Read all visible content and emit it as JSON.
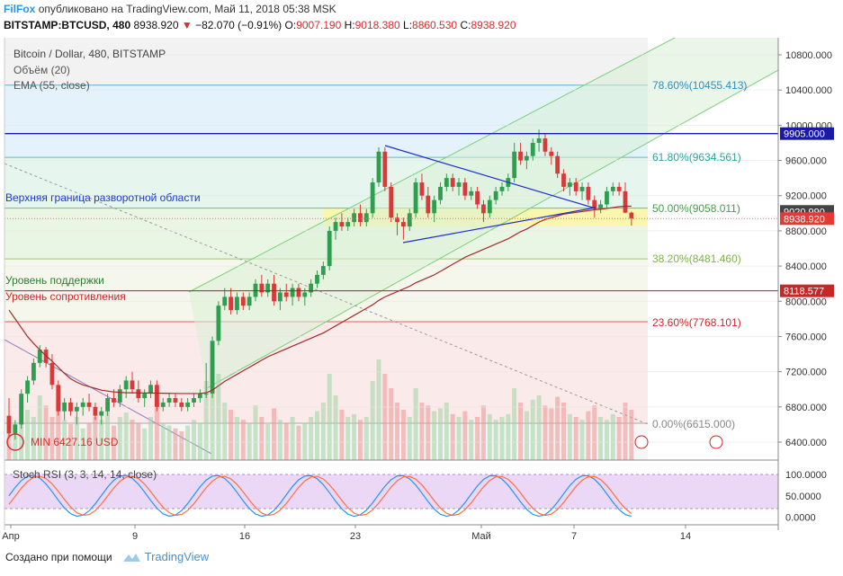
{
  "header": {
    "brand": "FilFox",
    "published": "опубликовано на TradingView.com, Май 11, 2018 05:38 MSK",
    "symbol": "BITSTAMP:BTCUSD, 480",
    "last": "8938.920",
    "change": "−82.070 (−0.91%)",
    "o_label": "O:",
    "o": "9007.190",
    "h_label": "H:",
    "h": "9018.380",
    "l_label": "L:",
    "l": "8860.530",
    "c_label": "C:",
    "c": "8938.920"
  },
  "legend": {
    "title": "Bitcoin / Dollar, 480, BITSTAMP",
    "volume": "Объём (20)",
    "ema": "EMA (55, close)"
  },
  "annotations": {
    "upper_reversal": "Верхняя граница разворотной области",
    "support": "Уровень поддержки",
    "resistance": "Уровень сопротивления",
    "min": "MIN 6427.16 USD"
  },
  "price_labels": {
    "blue_line": "9905.000",
    "current": "9020.990",
    "last": "8938.920",
    "resistance": "8118.577"
  },
  "fib_levels": [
    {
      "text": "78.60%(10455.413)",
      "value": 10455.413,
      "color": "#2a8fc0",
      "band": "#e3f2fb"
    },
    {
      "text": "61.80%(9634.561)",
      "value": 9634.561,
      "color": "#26a69a",
      "band": "#e6f5ee"
    },
    {
      "text": "50.00%(9058.011)",
      "value": 9058.011,
      "color": "#43a047",
      "band": "#eaf6e4"
    },
    {
      "text": "38.20%(8481.460)",
      "value": 8481.46,
      "color": "#7cb342",
      "band": "#f6f7ec"
    },
    {
      "text": "23.60%(7768.101)",
      "value": 7768.101,
      "color": "#c62828",
      "band": "#fbeaea"
    },
    {
      "text": "0.00%(6615.000)",
      "value": 6615.0,
      "color": "#888888",
      "band": "#f6f6f6"
    }
  ],
  "stoch": {
    "title": "Stoch RSI (3, 3, 14, 14, close)",
    "ticks": [
      "100.0000",
      "50.0000",
      "0.0000"
    ]
  },
  "chart_data": {
    "type": "candlestick",
    "price_ticks": [
      "10800.000",
      "10400.000",
      "10000.000",
      "9600.000",
      "9200.000",
      "8800.000",
      "8400.000",
      "8000.000",
      "7600.000",
      "7200.000",
      "6800.000",
      "6400.000"
    ],
    "price_range": [
      6250,
      11000
    ],
    "x_labels": [
      "Апр",
      "9",
      "16",
      "23",
      "Май",
      "7",
      "14"
    ],
    "highlight_zone": [
      8850,
      9050
    ],
    "candles": [
      [
        6700,
        6900,
        6450,
        6500
      ],
      [
        6500,
        6650,
        6430,
        6600
      ],
      [
        6600,
        7000,
        6550,
        6950
      ],
      [
        6950,
        7150,
        6850,
        7100
      ],
      [
        7100,
        7350,
        7050,
        7300
      ],
      [
        7300,
        7500,
        7250,
        7450
      ],
      [
        7450,
        7480,
        7250,
        7300
      ],
      [
        7300,
        7400,
        7000,
        7050
      ],
      [
        7050,
        7100,
        6700,
        6750
      ],
      [
        6750,
        6900,
        6650,
        6850
      ],
      [
        6850,
        6900,
        6700,
        6750
      ],
      [
        6750,
        6850,
        6600,
        6800
      ],
      [
        6800,
        6900,
        6700,
        6850
      ],
      [
        6850,
        6950,
        6750,
        6800
      ],
      [
        6800,
        6850,
        6650,
        6700
      ],
      [
        6700,
        6800,
        6600,
        6750
      ],
      [
        6750,
        6950,
        6700,
        6900
      ],
      [
        6900,
        7000,
        6800,
        6850
      ],
      [
        6850,
        7050,
        6800,
        7000
      ],
      [
        7000,
        7150,
        6900,
        7100
      ],
      [
        7100,
        7200,
        6950,
        7000
      ],
      [
        7000,
        7100,
        6850,
        6900
      ],
      [
        6900,
        7000,
        6800,
        6950
      ],
      [
        6950,
        7100,
        6900,
        7050
      ],
      [
        7050,
        7100,
        6750,
        6800
      ],
      [
        6800,
        6900,
        6750,
        6850
      ],
      [
        6850,
        6950,
        6800,
        6900
      ],
      [
        6900,
        6950,
        6800,
        6850
      ],
      [
        6850,
        6900,
        6750,
        6800
      ],
      [
        6800,
        6900,
        6750,
        6850
      ],
      [
        6850,
        6950,
        6800,
        6900
      ],
      [
        6900,
        7000,
        6850,
        6950
      ],
      [
        6950,
        7300,
        6900,
        6950
      ],
      [
        6950,
        7600,
        6900,
        7550
      ],
      [
        7550,
        8000,
        7500,
        7950
      ],
      [
        7950,
        8150,
        7900,
        8050
      ],
      [
        8050,
        8150,
        7850,
        7900
      ],
      [
        7900,
        8100,
        7850,
        8050
      ],
      [
        8050,
        8100,
        7900,
        7950
      ],
      [
        7950,
        8100,
        7900,
        8050
      ],
      [
        8050,
        8250,
        8000,
        8200
      ],
      [
        8200,
        8300,
        8050,
        8100
      ],
      [
        8100,
        8250,
        8050,
        8200
      ],
      [
        8200,
        8300,
        7950,
        8000
      ],
      [
        8000,
        8150,
        7900,
        8100
      ],
      [
        8100,
        8200,
        8000,
        8050
      ],
      [
        8050,
        8200,
        7950,
        8150
      ],
      [
        8150,
        8200,
        8000,
        8050
      ],
      [
        8050,
        8150,
        7950,
        8100
      ],
      [
        8100,
        8250,
        8050,
        8200
      ],
      [
        8200,
        8350,
        8150,
        8300
      ],
      [
        8300,
        8450,
        8250,
        8400
      ],
      [
        8400,
        8850,
        8350,
        8800
      ],
      [
        8800,
        8950,
        8700,
        8900
      ],
      [
        8900,
        9000,
        8800,
        8850
      ],
      [
        8850,
        8950,
        8800,
        8900
      ],
      [
        8900,
        9050,
        8850,
        9000
      ],
      [
        9000,
        9100,
        8850,
        8900
      ],
      [
        8900,
        9050,
        8850,
        9000
      ],
      [
        9000,
        9400,
        8950,
        9350
      ],
      [
        9350,
        9750,
        9300,
        9700
      ],
      [
        9700,
        9750,
        9250,
        9300
      ],
      [
        9300,
        9350,
        8900,
        8950
      ],
      [
        8950,
        9000,
        8750,
        8900
      ],
      [
        8900,
        8950,
        8700,
        8850
      ],
      [
        8850,
        9050,
        8800,
        9000
      ],
      [
        9000,
        9400,
        8950,
        9350
      ],
      [
        9350,
        9450,
        9150,
        9200
      ],
      [
        9200,
        9300,
        8950,
        9000
      ],
      [
        9000,
        9200,
        8900,
        9150
      ],
      [
        9150,
        9350,
        9100,
        9300
      ],
      [
        9300,
        9450,
        9250,
        9400
      ],
      [
        9400,
        9450,
        9250,
        9300
      ],
      [
        9300,
        9400,
        9200,
        9350
      ],
      [
        9350,
        9400,
        9150,
        9200
      ],
      [
        9200,
        9300,
        9150,
        9250
      ],
      [
        9250,
        9300,
        9050,
        9100
      ],
      [
        9100,
        9150,
        8900,
        9000
      ],
      [
        9000,
        9200,
        8950,
        9150
      ],
      [
        9150,
        9300,
        9100,
        9250
      ],
      [
        9250,
        9350,
        9200,
        9300
      ],
      [
        9300,
        9450,
        9250,
        9400
      ],
      [
        9400,
        9800,
        9350,
        9700
      ],
      [
        9700,
        9800,
        9550,
        9600
      ],
      [
        9600,
        9700,
        9500,
        9650
      ],
      [
        9650,
        9850,
        9600,
        9800
      ],
      [
        9800,
        9950,
        9700,
        9850
      ],
      [
        9850,
        9900,
        9650,
        9700
      ],
      [
        9700,
        9750,
        9550,
        9650
      ],
      [
        9650,
        9700,
        9400,
        9450
      ],
      [
        9450,
        9500,
        9250,
        9300
      ],
      [
        9300,
        9400,
        9200,
        9350
      ],
      [
        9350,
        9400,
        9200,
        9250
      ],
      [
        9250,
        9350,
        9150,
        9300
      ],
      [
        9300,
        9350,
        9100,
        9150
      ],
      [
        9150,
        9200,
        8950,
        9050
      ],
      [
        9050,
        9150,
        9000,
        9100
      ],
      [
        9100,
        9300,
        9050,
        9250
      ],
      [
        9250,
        9350,
        9200,
        9300
      ],
      [
        9300,
        9350,
        9200,
        9250
      ],
      [
        9250,
        9350,
        9000,
        9007
      ],
      [
        9007,
        9018,
        8860,
        8939
      ]
    ],
    "ema": [
      7900,
      7800,
      7700,
      7600,
      7520,
      7450,
      7380,
      7320,
      7250,
      7180,
      7120,
      7080,
      7050,
      7030,
      7010,
      6990,
      6980,
      6970,
      6965,
      6960,
      6960,
      6960,
      6958,
      6958,
      6956,
      6955,
      6954,
      6953,
      6952,
      6952,
      6952,
      6953,
      6960,
      6990,
      7040,
      7090,
      7130,
      7170,
      7210,
      7250,
      7290,
      7330,
      7370,
      7400,
      7430,
      7460,
      7490,
      7520,
      7550,
      7580,
      7610,
      7640,
      7680,
      7720,
      7760,
      7800,
      7840,
      7880,
      7920,
      7960,
      8010,
      8050,
      8080,
      8110,
      8140,
      8170,
      8210,
      8240,
      8270,
      8300,
      8340,
      8380,
      8420,
      8460,
      8500,
      8530,
      8560,
      8590,
      8620,
      8650,
      8680,
      8710,
      8750,
      8790,
      8820,
      8860,
      8900,
      8930,
      8950,
      8970,
      8990,
      9000,
      9010,
      9020,
      9030,
      9040,
      9045,
      9055,
      9065,
      9075,
      9080,
      9080
    ]
  }
}
